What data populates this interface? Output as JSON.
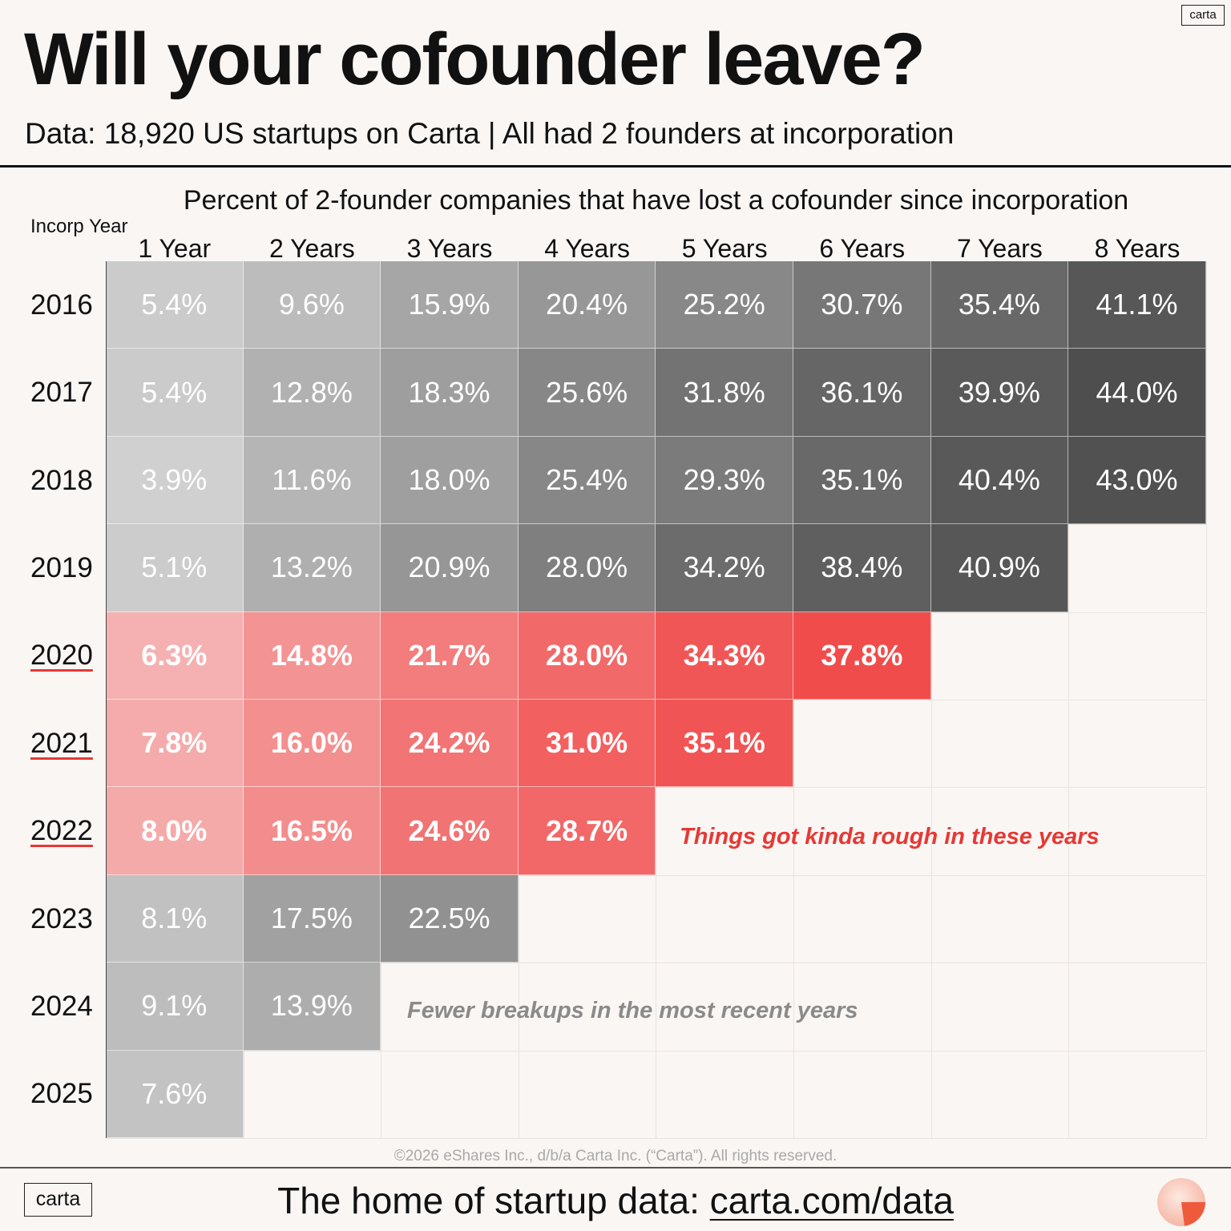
{
  "brand": {
    "logo_text": "carta",
    "accent": "#e53935"
  },
  "header": {
    "title": "Will your cofounder leave?",
    "subtitle": "Data: 18,920 US startups on Carta | All had 2 founders at incorporation"
  },
  "chart_data": {
    "type": "heatmap",
    "title": "Percent of 2-founder companies that have lost a cofounder since incorporation",
    "row_axis_label": "Incorp Year",
    "columns": [
      "1 Year",
      "2 Years",
      "3 Years",
      "4 Years",
      "5 Years",
      "6 Years",
      "7 Years",
      "8 Years"
    ],
    "rows": [
      {
        "year": "2016",
        "highlight": false,
        "values": [
          5.4,
          9.6,
          15.9,
          20.4,
          25.2,
          30.7,
          35.4,
          41.1
        ]
      },
      {
        "year": "2017",
        "highlight": false,
        "values": [
          5.4,
          12.8,
          18.3,
          25.6,
          31.8,
          36.1,
          39.9,
          44.0
        ]
      },
      {
        "year": "2018",
        "highlight": false,
        "values": [
          3.9,
          11.6,
          18.0,
          25.4,
          29.3,
          35.1,
          40.4,
          43.0
        ]
      },
      {
        "year": "2019",
        "highlight": false,
        "values": [
          5.1,
          13.2,
          20.9,
          28.0,
          34.2,
          38.4,
          40.9
        ]
      },
      {
        "year": "2020",
        "highlight": true,
        "values": [
          6.3,
          14.8,
          21.7,
          28.0,
          34.3,
          37.8
        ]
      },
      {
        "year": "2021",
        "highlight": true,
        "values": [
          7.8,
          16.0,
          24.2,
          31.0,
          35.1
        ]
      },
      {
        "year": "2022",
        "highlight": true,
        "values": [
          8.0,
          16.5,
          24.6,
          28.7
        ]
      },
      {
        "year": "2023",
        "highlight": false,
        "values": [
          8.1,
          17.5,
          22.5
        ]
      },
      {
        "year": "2024",
        "highlight": false,
        "values": [
          9.1,
          13.9
        ]
      },
      {
        "year": "2025",
        "highlight": false,
        "values": [
          7.6
        ]
      }
    ],
    "value_suffix": "%",
    "value_range": [
      0,
      45
    ],
    "colors": {
      "grey_scale": "#555555",
      "red_scale": "#ef3e3e"
    }
  },
  "annotations": {
    "red_note": "Things got kinda rough in these years",
    "grey_note": "Fewer breakups in the most recent years"
  },
  "footer": {
    "copyright": "©2026 eShares Inc., d/b/a Carta Inc. (“Carta”). All rights reserved.",
    "tagline_prefix": "The home of startup data: ",
    "tagline_link": "carta.com/data"
  }
}
